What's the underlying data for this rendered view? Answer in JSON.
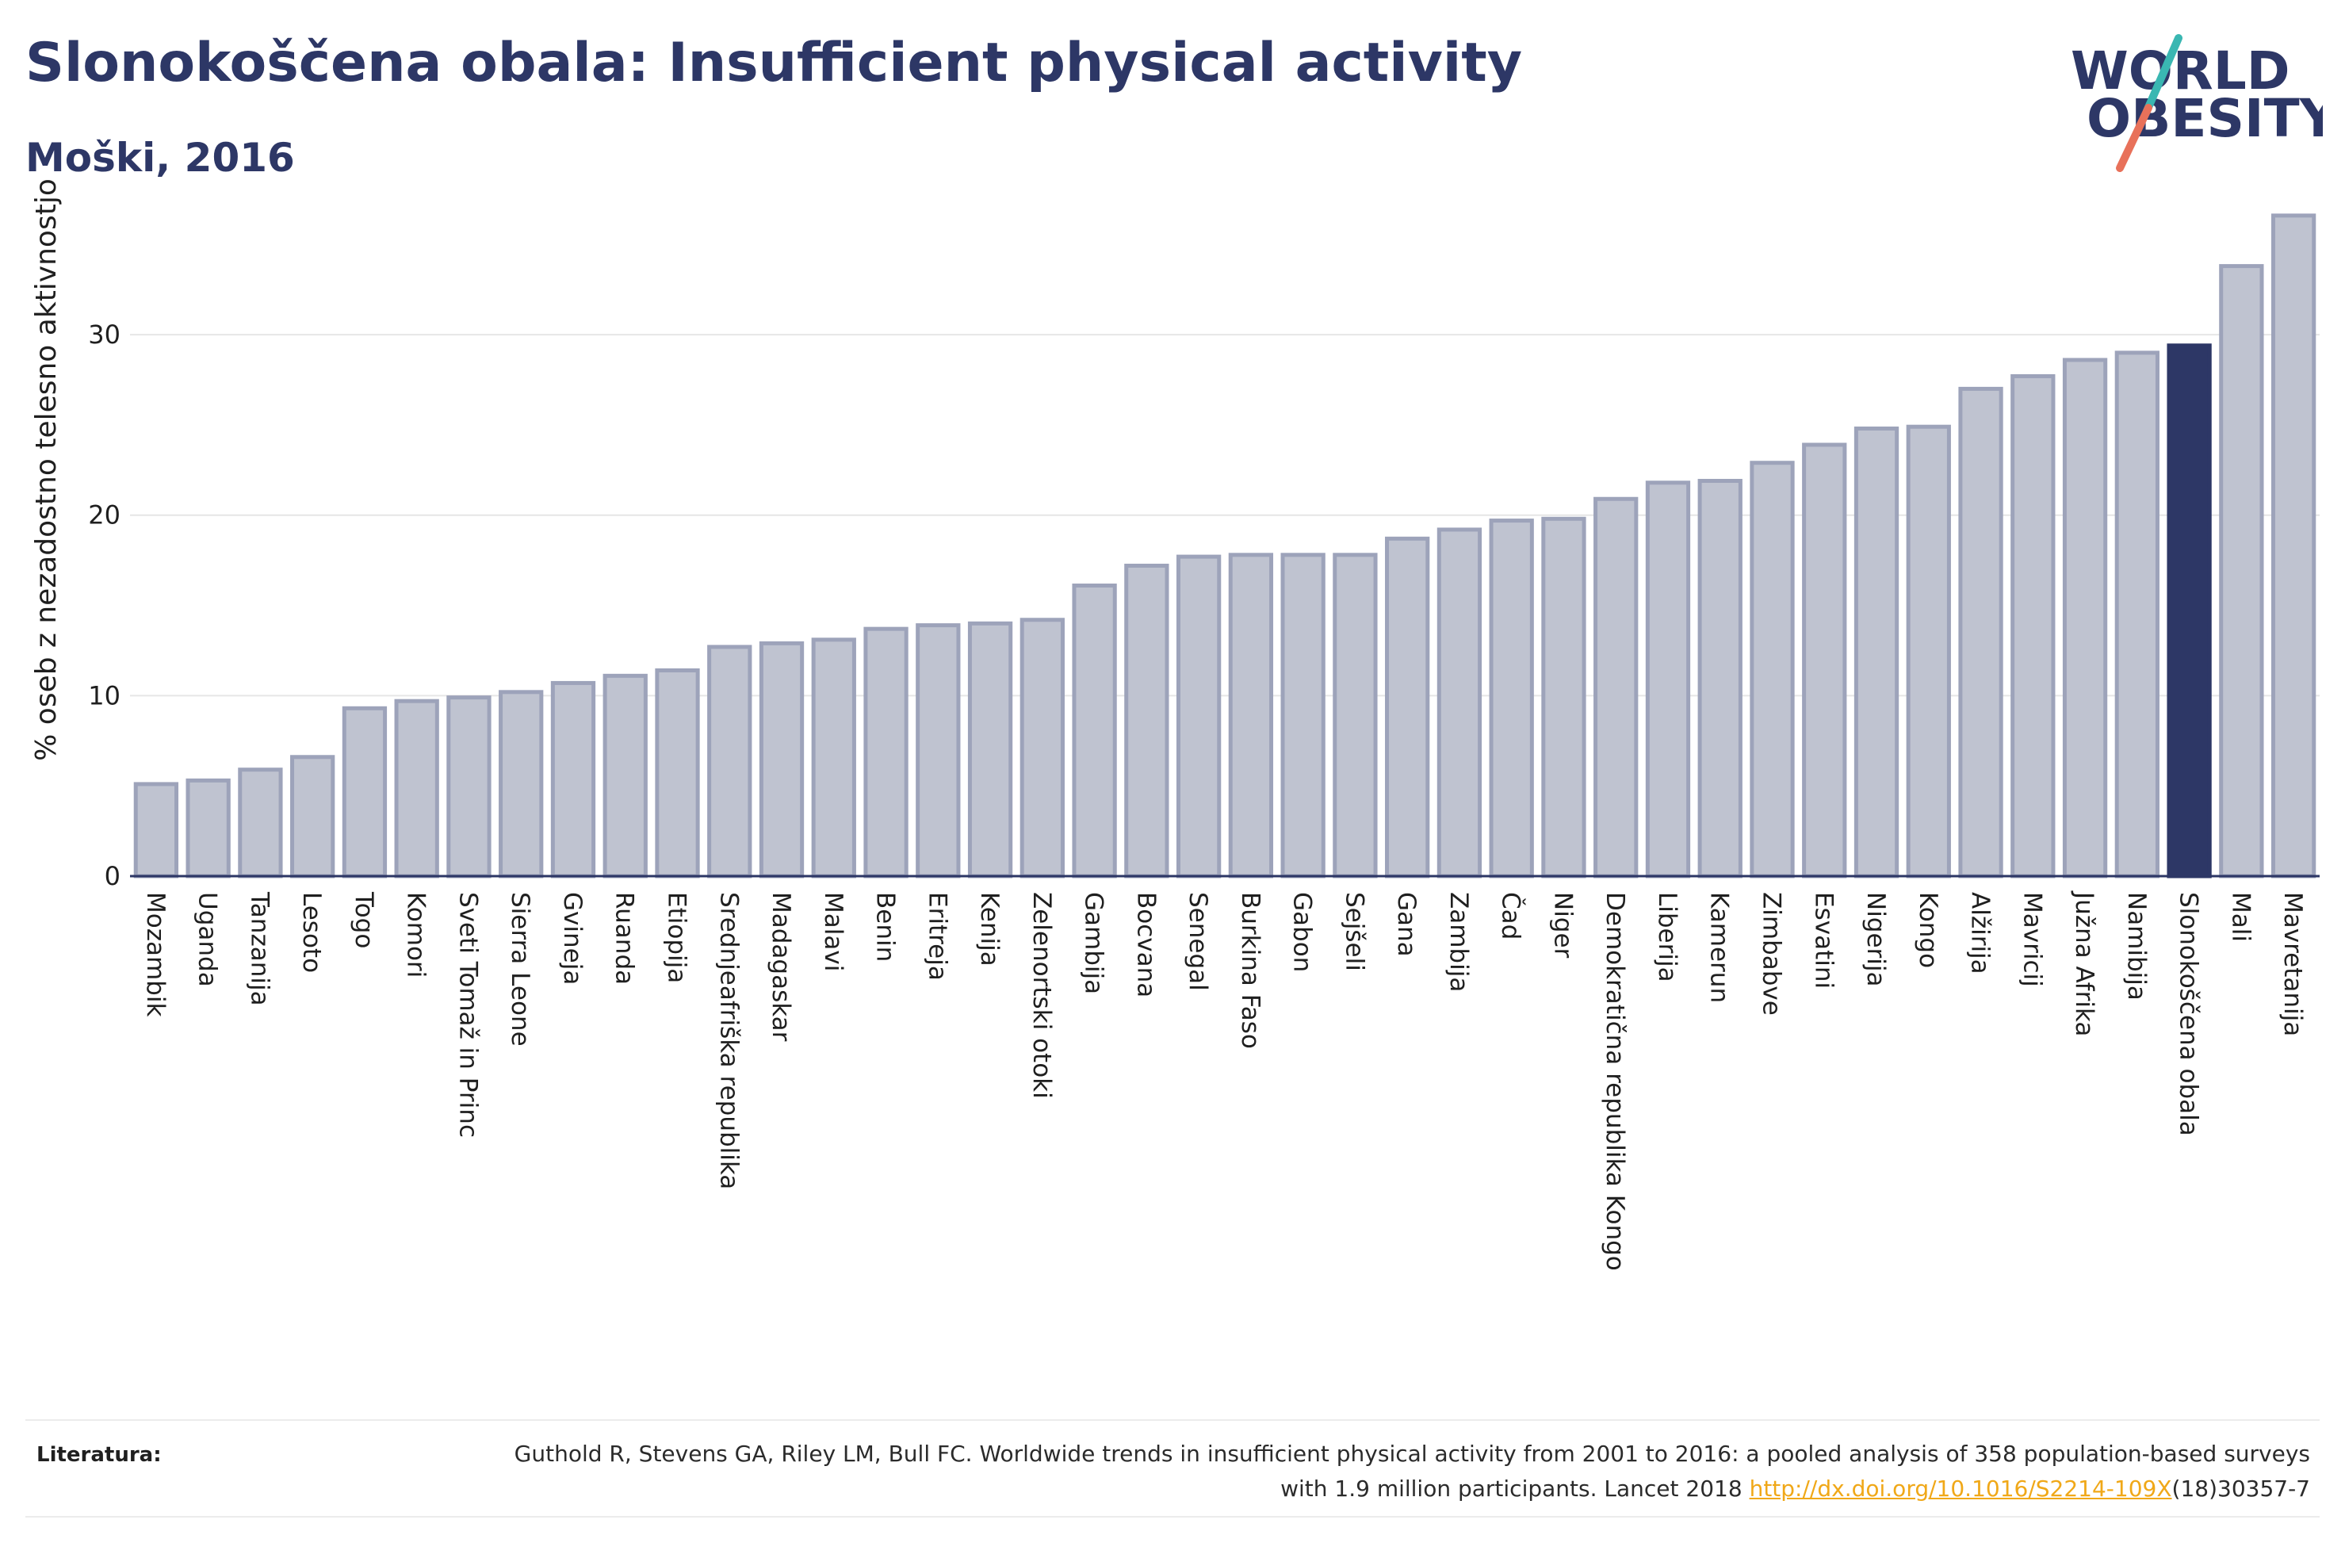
{
  "header": {
    "title": "Slonokoščena obala: Insufficient physical activity",
    "subtitle": "Moški, 2016"
  },
  "logo": {
    "text_line1": "WORLD",
    "text_line2": "OBESITY",
    "colors": {
      "text": "#2d3766",
      "slash_top": "#3ab7b2",
      "slash_bottom": "#e8715a"
    }
  },
  "references": {
    "label": "Literatura:",
    "text_before": "Guthold R, Stevens GA, Riley LM, Bull FC. Worldwide trends in insufficient physical activity from 2001 to 2016: a pooled analysis of 358 population-based surveys with 1.9 million participants. Lancet 2018",
    "link": "http://dx.doi.org/10.1016/S2214-109X",
    "text_after": "(18)30357-7"
  },
  "colors": {
    "bar_fill": "#bfc3d0",
    "bar_stroke": "#9da3ba",
    "highlight_fill": "#2d3766",
    "gridline": "#e6e6e6",
    "axis": "#2d3766"
  },
  "chart_data": {
    "type": "bar",
    "title": "Slonokoščena obala: Insufficient physical activity",
    "subtitle": "Moški, 2016",
    "xlabel": "",
    "ylabel": "% oseb z nezadostno telesno aktivnostjo",
    "ylim": [
      0,
      38
    ],
    "yticks": [
      0,
      10,
      20,
      30
    ],
    "grid": "horizontal",
    "highlight": "Slonokoščena obala",
    "categories": [
      "Mozambik",
      "Uganda",
      "Tanzanija",
      "Lesoto",
      "Togo",
      "Komori",
      "Sveti Tomaž in Princ",
      "Sierra Leone",
      "Gvineja",
      "Ruanda",
      "Etiopija",
      "Srednjeafriška republika",
      "Madagaskar",
      "Malavi",
      "Benin",
      "Eritreja",
      "Kenija",
      "Zelenortski otoki",
      "Gambija",
      "Bocvana",
      "Senegal",
      "Burkina Faso",
      "Gabon",
      "Sejšeli",
      "Gana",
      "Zambija",
      "Čad",
      "Niger",
      "Demokratična republika Kongo",
      "Liberija",
      "Kamerun",
      "Zimbabve",
      "Esvatini",
      "Nigerija",
      "Kongo",
      "Alžirija",
      "Mavricij",
      "Južna Afrika",
      "Namibija",
      "Slonokoščena obala",
      "Mali",
      "Mavretanija"
    ],
    "values": [
      5.1,
      5.3,
      5.9,
      6.6,
      9.3,
      9.7,
      9.9,
      10.2,
      10.7,
      11.1,
      11.4,
      12.7,
      12.9,
      13.1,
      13.7,
      13.9,
      14.0,
      14.2,
      16.1,
      17.2,
      17.7,
      17.8,
      17.8,
      17.8,
      18.7,
      19.2,
      19.7,
      19.8,
      20.9,
      21.8,
      21.9,
      22.9,
      23.9,
      24.8,
      24.9,
      27.0,
      27.7,
      28.6,
      29.0,
      29.4,
      33.8,
      36.6
    ]
  }
}
